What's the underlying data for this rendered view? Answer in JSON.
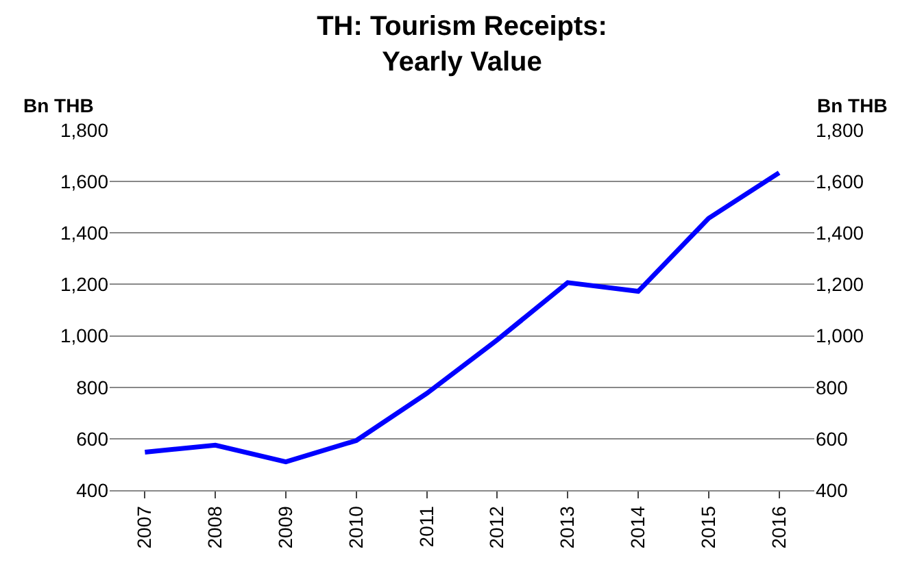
{
  "chart_data": {
    "type": "line",
    "title": "TH: Tourism Receipts:\nYearly Value",
    "ylabel": "Bn THB",
    "y2label": "Bn THB",
    "categories": [
      "2007",
      "2008",
      "2009",
      "2010",
      "2011",
      "2012",
      "2013",
      "2014",
      "2015",
      "2016"
    ],
    "series": [
      {
        "color": "#0000ff",
        "values": [
          548,
          575,
          510,
          593,
          776,
          984,
          1207,
          1173,
          1457,
          1634
        ]
      }
    ],
    "ylim": [
      400,
      1800
    ],
    "yticks": [
      400,
      600,
      800,
      {
        "value": 1000,
        "label": "1,000"
      },
      {
        "value": 1200,
        "label": "1,200"
      },
      {
        "value": 1400,
        "label": "1,400"
      },
      {
        "value": 1600,
        "label": "1,600"
      },
      {
        "value": 1800,
        "label": "1,800"
      }
    ],
    "y2lim": [
      400,
      1800
    ],
    "y2ticks": [
      400,
      600,
      800,
      {
        "value": 1000,
        "label": "1,000"
      },
      {
        "value": 1200,
        "label": "1,200"
      },
      {
        "value": 1400,
        "label": "1,400"
      },
      {
        "value": 1600,
        "label": "1,600"
      },
      {
        "value": 1800,
        "label": "1,800"
      }
    ],
    "grid": "y",
    "marker": "none",
    "line_style": "solid"
  }
}
